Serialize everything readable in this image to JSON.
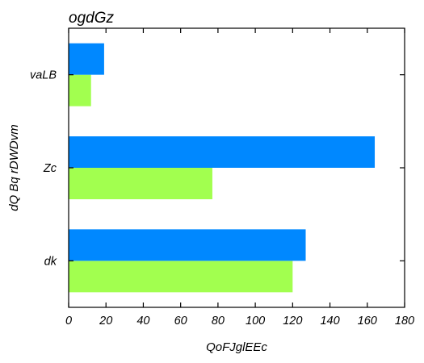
{
  "chart_data": {
    "type": "bar",
    "orientation": "horizontal",
    "title": "ogdGz",
    "xlabel": "QoFJglEEc",
    "ylabel": "dQ Bq rDWDvm",
    "categories": [
      "dk",
      "Zc",
      "vaLB"
    ],
    "series": [
      {
        "color": "#a2ff4f",
        "values": [
          120,
          77,
          12
        ]
      },
      {
        "color": "#0088ff",
        "values": [
          127,
          164,
          19
        ]
      }
    ],
    "xlim": [
      0,
      180
    ],
    "xticks": [
      0,
      20,
      40,
      60,
      80,
      100,
      120,
      140,
      160,
      180
    ],
    "grid": false
  }
}
